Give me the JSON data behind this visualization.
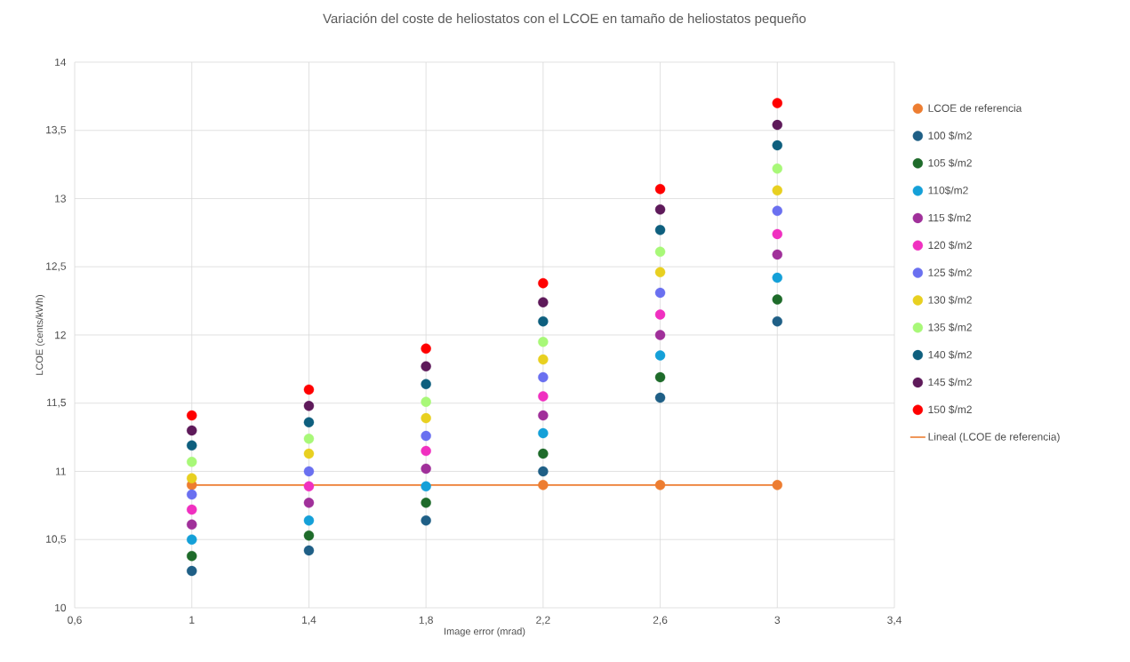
{
  "chart_data": {
    "type": "scatter",
    "title": "Variación del coste de heliostatos con el LCOE en tamaño de heliostatos pequeño",
    "xlabel": "Image error (mrad)",
    "ylabel": "LCOE (cents/kWh)",
    "x": [
      1,
      1.4,
      1.8,
      2.2,
      2.6,
      3
    ],
    "xlim": [
      0.6,
      3.4
    ],
    "xticks": [
      {
        "value": 0.6,
        "label": "0,6"
      },
      1,
      {
        "value": 1.4,
        "label": "1,4"
      },
      {
        "value": 1.8,
        "label": "1,8"
      },
      {
        "value": 2.2,
        "label": "2,2"
      },
      {
        "value": 2.6,
        "label": "2,6"
      },
      3,
      {
        "value": 3.4,
        "label": "3,4"
      }
    ],
    "ylim": [
      10,
      14
    ],
    "yticks": [
      10,
      {
        "value": 10.5,
        "label": "10,5"
      },
      11,
      {
        "value": 11.5,
        "label": "11,5"
      },
      12,
      {
        "value": 12.5,
        "label": "12,5"
      },
      13,
      {
        "value": 13.5,
        "label": "13,5"
      },
      14
    ],
    "grid": true,
    "legend": "right",
    "marker": "circle",
    "series": [
      {
        "name": "LCOE de referencia",
        "color": "#ed7d31",
        "values": [
          10.9,
          null,
          null,
          10.9,
          10.9,
          10.9
        ]
      },
      {
        "name": "100 $/m2",
        "color": "#1f5f86",
        "values": [
          10.27,
          10.42,
          10.64,
          11.0,
          11.54,
          12.1
        ]
      },
      {
        "name": "105 $/m2",
        "color": "#1e6b2a",
        "values": [
          10.38,
          10.53,
          10.77,
          11.13,
          11.69,
          12.26
        ]
      },
      {
        "name": "110$/m2",
        "color": "#14a0d8",
        "values": [
          10.5,
          10.64,
          10.89,
          11.28,
          11.85,
          12.42
        ]
      },
      {
        "name": "115 $/m2",
        "color": "#a0309a",
        "values": [
          10.61,
          10.77,
          11.02,
          11.41,
          12.0,
          12.59
        ]
      },
      {
        "name": "120 $/m2",
        "color": "#f030c0",
        "values": [
          10.72,
          10.89,
          11.15,
          11.55,
          12.15,
          12.74
        ]
      },
      {
        "name": "125 $/m2",
        "color": "#6a70f0",
        "values": [
          10.83,
          11.0,
          11.26,
          11.69,
          12.31,
          12.91
        ]
      },
      {
        "name": "130 $/m2",
        "color": "#e8d020",
        "values": [
          10.95,
          11.13,
          11.39,
          11.82,
          12.46,
          13.06
        ]
      },
      {
        "name": "135 $/m2",
        "color": "#a8f878",
        "values": [
          11.07,
          11.24,
          11.51,
          11.95,
          12.61,
          13.22
        ]
      },
      {
        "name": "140 $/m2",
        "color": "#0e5f7e",
        "values": [
          11.19,
          11.36,
          11.64,
          12.1,
          12.77,
          13.39
        ]
      },
      {
        "name": "145  $/m2",
        "color": "#5e1a5a",
        "values": [
          11.3,
          11.48,
          11.77,
          12.24,
          12.92,
          13.54
        ]
      },
      {
        "name": "150 $/m2",
        "color": "#ff0000",
        "values": [
          11.41,
          11.6,
          11.9,
          12.38,
          13.07,
          13.7
        ]
      },
      {
        "name": "Lineal (LCOE de referencia)",
        "type": "line",
        "marker": "none",
        "color": "#ed7d31",
        "x": [
          1,
          3
        ],
        "values": [
          10.9,
          10.9
        ]
      }
    ]
  }
}
